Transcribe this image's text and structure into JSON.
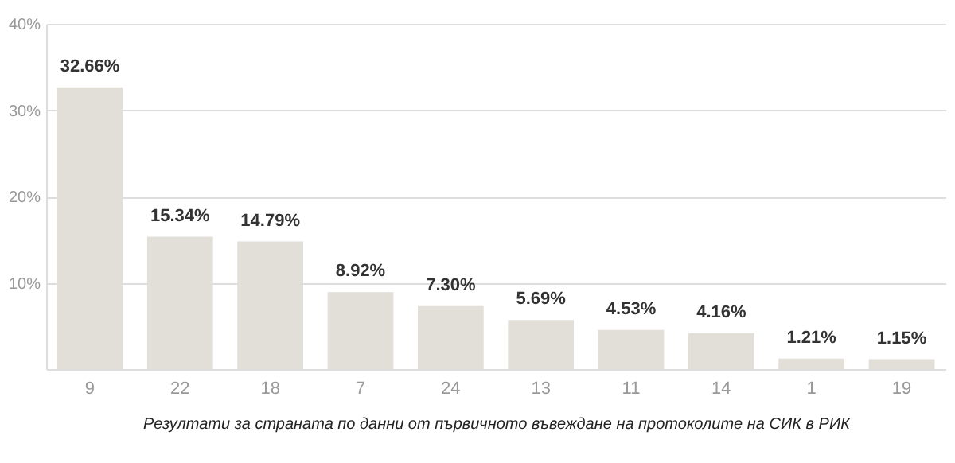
{
  "chart_data": {
    "type": "bar",
    "xlabel": "Резултати за страната по данни от първичното въвеждане на протоколите на СИК в РИК",
    "categories": [
      "9",
      "22",
      "18",
      "7",
      "24",
      "13",
      "11",
      "14",
      "1",
      "19"
    ],
    "values": [
      32.66,
      15.34,
      14.79,
      8.92,
      7.3,
      5.69,
      4.53,
      4.16,
      1.21,
      1.15
    ],
    "value_labels": [
      "32.66%",
      "15.34%",
      "14.79%",
      "8.92%",
      "7.30%",
      "5.69%",
      "4.53%",
      "4.16%",
      "1.21%",
      "1.15%"
    ],
    "color": "#e2ded8",
    "ylim": [
      0,
      40
    ],
    "yticks": [
      {
        "value": 10,
        "label": "10%"
      },
      {
        "value": 20,
        "label": "20%"
      },
      {
        "value": 30,
        "label": "30%"
      },
      {
        "value": 40,
        "label": "40%"
      }
    ],
    "grid": "y"
  }
}
